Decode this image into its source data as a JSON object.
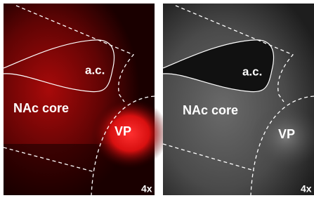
{
  "panels": [
    {
      "labels": {
        "structure": "a.c.",
        "region_upper": "NAc core",
        "region_lower": "VP",
        "magnification": "4x"
      }
    },
    {
      "labels": {
        "structure": "a.c.",
        "region_upper": "NAc core",
        "region_lower": "VP",
        "magnification": "4x"
      }
    }
  ]
}
